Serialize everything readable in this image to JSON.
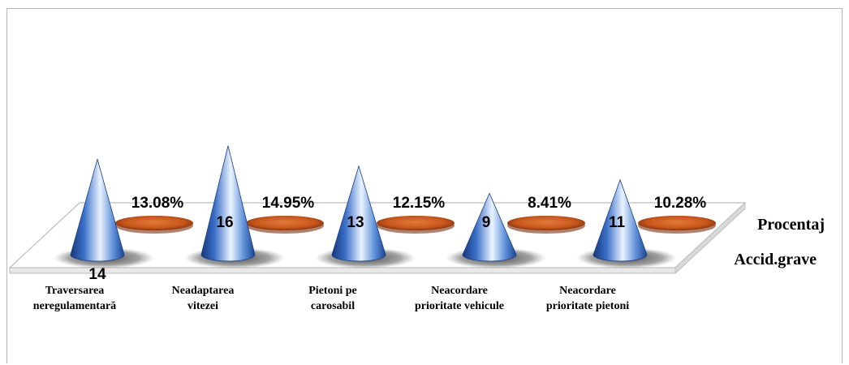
{
  "chart_data": {
    "type": "bar",
    "categories": [
      [
        "Traversarea",
        "neregulamentară"
      ],
      [
        "Neadaptarea",
        "vitezei"
      ],
      [
        "Pietoni pe",
        "carosabil"
      ],
      [
        "Neacordare",
        "prioritate vehicule"
      ],
      [
        "Neacordare",
        "prioritate pietoni"
      ]
    ],
    "series": [
      {
        "name": "Accid.grave",
        "values": [
          14,
          16,
          13,
          9,
          11
        ],
        "labels": [
          "14",
          "16",
          "13",
          "9",
          "11"
        ],
        "color": "#2f63b8",
        "shape": "cone"
      },
      {
        "name": "Procentaj",
        "values": [
          13.08,
          14.95,
          12.15,
          8.41,
          10.28
        ],
        "labels": [
          "13.08%",
          "14.95%",
          "12.15%",
          "8.41%",
          "10.28%"
        ],
        "color": "#c8561a",
        "shape": "disc"
      }
    ]
  }
}
